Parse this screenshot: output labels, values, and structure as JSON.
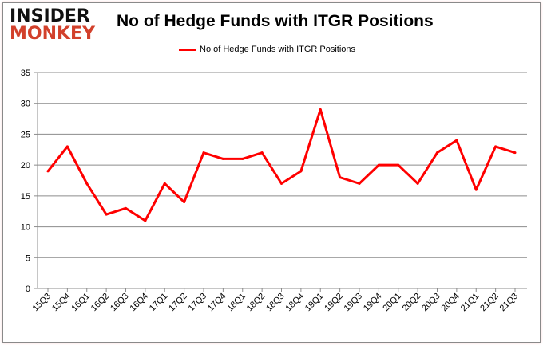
{
  "logo": {
    "line1": "INSIDER",
    "line2": "MONKEY"
  },
  "chart_data": {
    "type": "line",
    "title": "No of Hedge Funds with ITGR Positions",
    "xlabel": "",
    "ylabel": "",
    "ylim": [
      0,
      35
    ],
    "yticks": [
      0,
      5,
      10,
      15,
      20,
      25,
      30,
      35
    ],
    "grid": true,
    "legend_position": "top-center",
    "categories": [
      "15Q3",
      "15Q4",
      "16Q1",
      "16Q2",
      "16Q3",
      "16Q4",
      "17Q1",
      "17Q2",
      "17Q3",
      "17Q4",
      "18Q1",
      "18Q2",
      "18Q3",
      "18Q4",
      "19Q1",
      "19Q2",
      "19Q3",
      "19Q4",
      "20Q1",
      "20Q2",
      "20Q3",
      "20Q4",
      "21Q1",
      "21Q2",
      "21Q3"
    ],
    "series": [
      {
        "name": "No of Hedge Funds with ITGR Positions",
        "color": "#ff0000",
        "values": [
          19,
          23,
          17,
          12,
          13,
          11,
          17,
          14,
          22,
          21,
          21,
          22,
          17,
          19,
          29,
          18,
          17,
          20,
          20,
          17,
          22,
          24,
          16,
          23,
          22
        ]
      }
    ]
  }
}
